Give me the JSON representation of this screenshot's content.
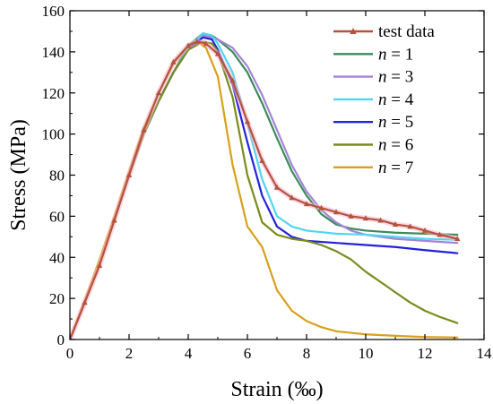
{
  "chart_data": {
    "type": "line",
    "xlabel": "Strain (‰)",
    "ylabel": "Stress (MPa)",
    "xlim": [
      0,
      14
    ],
    "ylim": [
      0,
      160
    ],
    "xticks": [
      "0",
      "2",
      "4",
      "6",
      "8",
      "10",
      "12",
      "14"
    ],
    "yticks": [
      "0",
      "20",
      "40",
      "60",
      "80",
      "100",
      "120",
      "140",
      "160"
    ],
    "grid": false,
    "legend_position": "top-right",
    "series": [
      {
        "name": "test data",
        "legend_label": "test data",
        "color": "#b5533c",
        "marker": "triangle",
        "points": [
          [
            0,
            0
          ],
          [
            0.5,
            18
          ],
          [
            1,
            36
          ],
          [
            1.5,
            58
          ],
          [
            2,
            80
          ],
          [
            2.5,
            102
          ],
          [
            3,
            120
          ],
          [
            3.5,
            135
          ],
          [
            4,
            143
          ],
          [
            4.3,
            145
          ],
          [
            4.6,
            144
          ],
          [
            5,
            139
          ],
          [
            5.5,
            126
          ],
          [
            6,
            106
          ],
          [
            6.5,
            87
          ],
          [
            7,
            74
          ],
          [
            7.5,
            69
          ],
          [
            8,
            66
          ],
          [
            8.5,
            64
          ],
          [
            9,
            62
          ],
          [
            9.5,
            60
          ],
          [
            10,
            59
          ],
          [
            10.5,
            58
          ],
          [
            11,
            56
          ],
          [
            11.5,
            55
          ],
          [
            12,
            53
          ],
          [
            12.5,
            51
          ],
          [
            13.1,
            49
          ]
        ]
      },
      {
        "name": "n = 1",
        "legend_prefix": "n",
        "legend_suffix": " = 1",
        "color": "#3c8a5c",
        "points": [
          [
            0,
            0
          ],
          [
            0.5,
            18
          ],
          [
            1,
            37
          ],
          [
            1.5,
            58
          ],
          [
            2,
            80
          ],
          [
            2.5,
            100
          ],
          [
            3,
            116
          ],
          [
            3.5,
            130
          ],
          [
            4,
            143
          ],
          [
            4.5,
            149
          ],
          [
            4.8,
            148
          ],
          [
            5,
            146
          ],
          [
            5.5,
            140
          ],
          [
            6,
            130
          ],
          [
            6.5,
            115
          ],
          [
            7,
            98
          ],
          [
            7.5,
            82
          ],
          [
            8,
            70
          ],
          [
            8.5,
            61
          ],
          [
            9,
            56
          ],
          [
            9.5,
            54
          ],
          [
            10,
            53
          ],
          [
            11,
            52
          ],
          [
            12,
            51.5
          ],
          [
            13.1,
            51
          ]
        ]
      },
      {
        "name": "n = 3",
        "legend_prefix": "n",
        "legend_suffix": " = 3",
        "color": "#a385d6",
        "points": [
          [
            0,
            0
          ],
          [
            0.5,
            18
          ],
          [
            1,
            37
          ],
          [
            1.5,
            58
          ],
          [
            2,
            80
          ],
          [
            2.5,
            100
          ],
          [
            3,
            116
          ],
          [
            3.5,
            130
          ],
          [
            4,
            142
          ],
          [
            4.5,
            148
          ],
          [
            4.8,
            147
          ],
          [
            5,
            146
          ],
          [
            5.5,
            142
          ],
          [
            6,
            133
          ],
          [
            6.5,
            119
          ],
          [
            7,
            102
          ],
          [
            7.5,
            85
          ],
          [
            8,
            72
          ],
          [
            8.5,
            63
          ],
          [
            9,
            57
          ],
          [
            9.5,
            53
          ],
          [
            10,
            51
          ],
          [
            11,
            49
          ],
          [
            12,
            48
          ],
          [
            13.1,
            47
          ]
        ]
      },
      {
        "name": "n = 4",
        "legend_prefix": "n",
        "legend_suffix": " = 4",
        "color": "#4fd6f0",
        "points": [
          [
            0,
            0
          ],
          [
            0.5,
            18
          ],
          [
            1,
            37
          ],
          [
            1.5,
            58
          ],
          [
            2,
            80
          ],
          [
            2.5,
            100
          ],
          [
            3,
            116
          ],
          [
            3.5,
            130
          ],
          [
            4,
            142
          ],
          [
            4.5,
            149
          ],
          [
            4.8,
            148
          ],
          [
            5,
            144
          ],
          [
            5.5,
            130
          ],
          [
            6,
            105
          ],
          [
            6.5,
            78
          ],
          [
            7,
            60
          ],
          [
            7.5,
            55
          ],
          [
            8,
            53
          ],
          [
            9,
            51.5
          ],
          [
            10,
            51
          ],
          [
            11,
            50
          ],
          [
            12,
            49
          ],
          [
            13.1,
            48.5
          ]
        ]
      },
      {
        "name": "n = 5",
        "legend_prefix": "n",
        "legend_suffix": " = 5",
        "color": "#2222dd",
        "points": [
          [
            0,
            0
          ],
          [
            0.5,
            18
          ],
          [
            1,
            37
          ],
          [
            1.5,
            58
          ],
          [
            2,
            80
          ],
          [
            2.5,
            100
          ],
          [
            3,
            116
          ],
          [
            3.5,
            130
          ],
          [
            4,
            141
          ],
          [
            4.5,
            147
          ],
          [
            4.8,
            146
          ],
          [
            5,
            141
          ],
          [
            5.5,
            124
          ],
          [
            6,
            96
          ],
          [
            6.5,
            70
          ],
          [
            7,
            55
          ],
          [
            7.5,
            50
          ],
          [
            8,
            48
          ],
          [
            9,
            47
          ],
          [
            10,
            46
          ],
          [
            11,
            45
          ],
          [
            12,
            43.5
          ],
          [
            13.1,
            42
          ]
        ]
      },
      {
        "name": "n = 6",
        "legend_prefix": "n",
        "legend_suffix": " = 6",
        "color": "#7a8c1e",
        "points": [
          [
            0,
            0
          ],
          [
            0.5,
            18
          ],
          [
            1,
            37
          ],
          [
            1.5,
            58
          ],
          [
            2,
            80
          ],
          [
            2.5,
            100
          ],
          [
            3,
            116
          ],
          [
            3.5,
            130
          ],
          [
            4,
            141
          ],
          [
            4.5,
            145
          ],
          [
            4.8,
            144
          ],
          [
            5,
            140
          ],
          [
            5.5,
            118
          ],
          [
            6,
            80
          ],
          [
            6.5,
            57
          ],
          [
            7,
            51
          ],
          [
            7.5,
            49
          ],
          [
            8,
            48
          ],
          [
            8.5,
            46
          ],
          [
            9,
            43
          ],
          [
            9.5,
            39
          ],
          [
            10,
            33
          ],
          [
            10.5,
            28
          ],
          [
            11,
            23
          ],
          [
            11.5,
            18
          ],
          [
            12,
            14
          ],
          [
            12.5,
            11
          ],
          [
            13.1,
            8
          ]
        ]
      },
      {
        "name": "n = 7",
        "legend_prefix": "n",
        "legend_suffix": " = 7",
        "color": "#d9a019",
        "points": [
          [
            0,
            0
          ],
          [
            0.5,
            19
          ],
          [
            1,
            39
          ],
          [
            1.5,
            60
          ],
          [
            2,
            82
          ],
          [
            2.5,
            103
          ],
          [
            3,
            120
          ],
          [
            3.5,
            134
          ],
          [
            4,
            143
          ],
          [
            4.3,
            145
          ],
          [
            4.6,
            142
          ],
          [
            5,
            128
          ],
          [
            5.5,
            85
          ],
          [
            6,
            55
          ],
          [
            6.5,
            45
          ],
          [
            7,
            24
          ],
          [
            7.5,
            14
          ],
          [
            8,
            9
          ],
          [
            8.5,
            6
          ],
          [
            9,
            4
          ],
          [
            10,
            2.5
          ],
          [
            11,
            1.8
          ],
          [
            12,
            1.2
          ],
          [
            13.1,
            1
          ]
        ]
      }
    ]
  }
}
